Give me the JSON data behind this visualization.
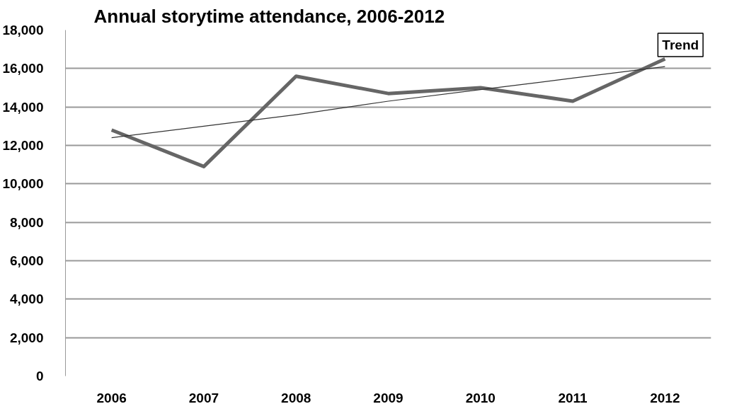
{
  "chart_data": {
    "type": "line",
    "title": "Annual storytime attendance, 2006-2012",
    "categories": [
      "2006",
      "2007",
      "2008",
      "2009",
      "2010",
      "2011",
      "2012"
    ],
    "series": [
      {
        "color": "#666666",
        "values": [
          12800,
          10900,
          15600,
          14700,
          15000,
          14300,
          16500
        ]
      },
      {
        "name": "Trend",
        "type": "line",
        "color": "#333333",
        "values": [
          12400,
          13000,
          13600,
          14300,
          14900,
          15500,
          16100
        ]
      }
    ],
    "ylim": [
      0,
      18000
    ],
    "yticks": [
      {
        "value": 0,
        "label": "0"
      },
      {
        "value": 2000,
        "label": "2,000"
      },
      {
        "value": 4000,
        "label": "4,000"
      },
      {
        "value": 6000,
        "label": "6,000"
      },
      {
        "value": 8000,
        "label": "8,000"
      },
      {
        "value": 10000,
        "label": "10,000"
      },
      {
        "value": 12000,
        "label": "12,000"
      },
      {
        "value": 14000,
        "label": "14,000"
      },
      {
        "value": 16000,
        "label": "16,000"
      },
      {
        "value": 18000,
        "label": "18,000"
      }
    ],
    "grid": "y",
    "marker": "none",
    "line_style": "solid"
  }
}
